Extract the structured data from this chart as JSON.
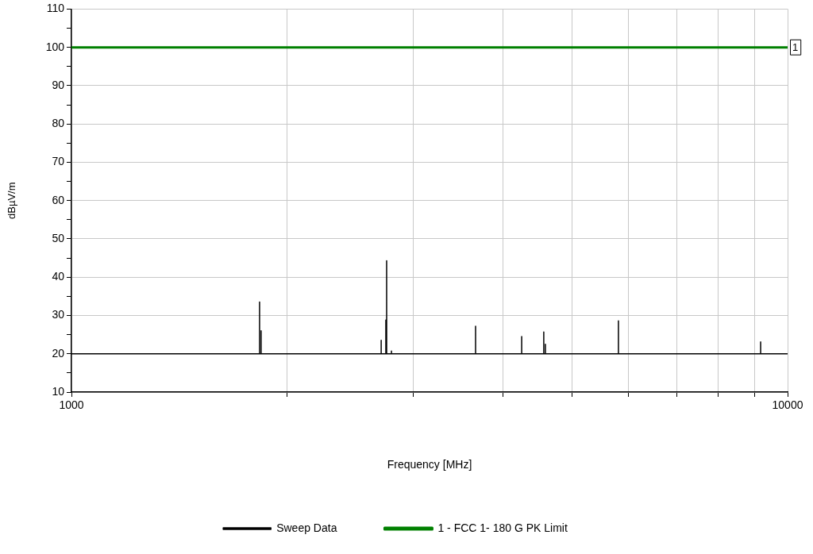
{
  "chart_data": {
    "type": "line",
    "xlabel": "Frequency [MHz]",
    "ylabel": "dBµV/m",
    "log": "x",
    "xlim": [
      1000,
      10000
    ],
    "ylim": [
      10,
      110
    ],
    "xticks": [
      1000,
      {
        "value": 2000,
        "label": null
      },
      {
        "value": 3000,
        "label": null
      },
      {
        "value": 4000,
        "label": null
      },
      {
        "value": 5000,
        "label": null
      },
      {
        "value": 6000,
        "label": null
      },
      {
        "value": 7000,
        "label": null
      },
      {
        "value": 8000,
        "label": null
      },
      {
        "value": 9000,
        "label": null
      },
      10000
    ],
    "yticks": [
      10,
      {
        "value": 15,
        "label": null
      },
      20,
      {
        "value": 25,
        "label": null
      },
      30,
      {
        "value": 35,
        "label": null
      },
      40,
      {
        "value": 45,
        "label": null
      },
      50,
      {
        "value": 55,
        "label": null
      },
      60,
      {
        "value": 65,
        "label": null
      },
      70,
      {
        "value": 75,
        "label": null
      },
      80,
      {
        "value": 85,
        "label": null
      },
      90,
      {
        "value": 95,
        "label": null
      },
      100,
      {
        "value": 105,
        "label": null
      },
      110
    ],
    "grid": true,
    "legend": "bottom",
    "line_style": "solid",
    "marker": "none",
    "series": [
      {
        "name": "Sweep Data",
        "color": "#000000",
        "x": [
          1000,
          1831,
          1831,
          1831,
          1840,
          1840,
          1840,
          2707,
          2707,
          2707,
          2748,
          2748,
          2748,
          2755,
          2755,
          2755,
          2798,
          2798,
          2798,
          3667,
          3667,
          3667,
          4253,
          4253,
          4253,
          4566,
          4566,
          4566,
          4590,
          4590,
          4590,
          5805,
          5805,
          5805,
          9170,
          9170,
          9170,
          10000
        ],
        "values": [
          20,
          20,
          33.5,
          20,
          20,
          26,
          20,
          20,
          23.5,
          20,
          20,
          28.8,
          20,
          20,
          44.3,
          20,
          20,
          20.7,
          20,
          20,
          27.2,
          20,
          20,
          24.5,
          20,
          20,
          25.7,
          20,
          20,
          22.5,
          20,
          20,
          28.6,
          20,
          20,
          23.1,
          20,
          20
        ]
      },
      {
        "name": "1 - FCC 1- 180 G PK Limit",
        "color": "#008000",
        "x": [
          1000,
          10000
        ],
        "values": [
          100,
          100
        ]
      }
    ],
    "annotations": [
      {
        "text": "1",
        "x": 10000,
        "y": 100
      }
    ]
  }
}
